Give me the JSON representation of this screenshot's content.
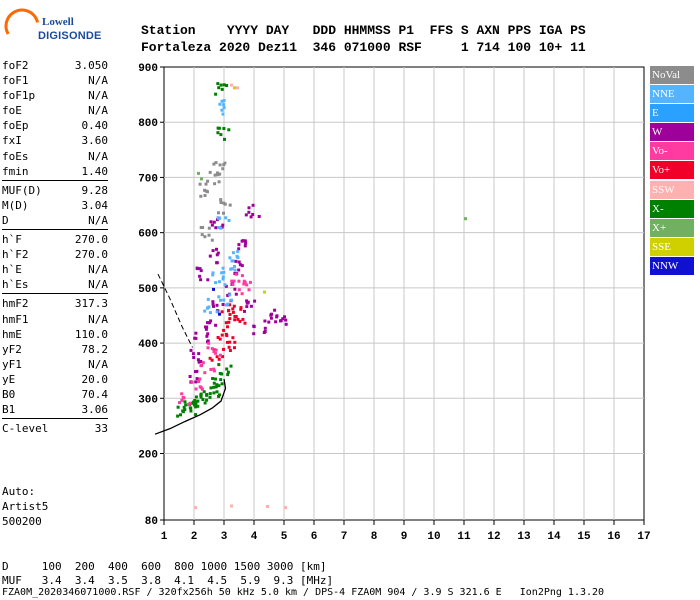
{
  "logo": {
    "line1": "Lowell",
    "line2": "DIGISONDE"
  },
  "header": {
    "labels": "Station    YYYY DAY   DDD HHMMSS P1  FFS S AXN PPS IGA PS",
    "values": "Fortaleza 2020 Dez11  346 071000 RSF     1 714 100 10+ 11"
  },
  "params": {
    "group1": [
      {
        "name": "foF2",
        "value": "3.050"
      },
      {
        "name": "foF1",
        "value": "N/A"
      },
      {
        "name": "foF1p",
        "value": "N/A"
      },
      {
        "name": "foE",
        "value": "N/A"
      },
      {
        "name": "foEp",
        "value": "0.40"
      },
      {
        "name": "fxI",
        "value": "3.60"
      },
      {
        "name": "foEs",
        "value": "N/A"
      },
      {
        "name": "fmin",
        "value": "1.40"
      }
    ],
    "group2": [
      {
        "name": "MUF(D)",
        "value": "9.28"
      },
      {
        "name": "M(D)",
        "value": "3.04"
      },
      {
        "name": "D",
        "value": "N/A"
      }
    ],
    "group3": [
      {
        "name": "h`F",
        "value": "270.0"
      },
      {
        "name": "h`F2",
        "value": "270.0"
      },
      {
        "name": "h`E",
        "value": "N/A"
      },
      {
        "name": "h`Es",
        "value": "N/A"
      }
    ],
    "group4": [
      {
        "name": "hmF2",
        "value": "317.3"
      },
      {
        "name": "hmF1",
        "value": "N/A"
      },
      {
        "name": "hmE",
        "value": "110.0"
      },
      {
        "name": "yF2",
        "value": "78.2"
      },
      {
        "name": "yF1",
        "value": "N/A"
      },
      {
        "name": "yE",
        "value": "20.0"
      },
      {
        "name": "B0",
        "value": "70.4"
      },
      {
        "name": "B1",
        "value": "3.06"
      }
    ],
    "group5": [
      {
        "name": "C-level",
        "value": "33"
      }
    ]
  },
  "auto": {
    "line1": "Auto:",
    "line2": "Artist5",
    "line3": "500200"
  },
  "legend": [
    {
      "label": "NoVal",
      "color": "#8c8c8c"
    },
    {
      "label": "NNE",
      "color": "#55b4ff"
    },
    {
      "label": "E",
      "color": "#2aa0ff"
    },
    {
      "label": "W",
      "color": "#a0009a"
    },
    {
      "label": "Vo-",
      "color": "#ff3aa0"
    },
    {
      "label": "Vo+",
      "color": "#f00028"
    },
    {
      "label": "SSW",
      "color": "#ffb0b0"
    },
    {
      "label": "X-",
      "color": "#008000"
    },
    {
      "label": "X+",
      "color": "#70b060"
    },
    {
      "label": "SSE",
      "color": "#d0d000"
    },
    {
      "label": "NNW",
      "color": "#1010d0"
    }
  ],
  "footer": {
    "dline": "D     100  200  400  600  800 1000 1500 3000 [km]",
    "mufline": "MUF   3.4  3.4  3.5  3.8  4.1  4.5  5.9  9.3 [MHz]",
    "fileline": "FZA0M_2020346071000.RSF / 320fx256h 50 kHz 5.0 km / DPS-4 FZA0M 904 / 3.9 S 321.6 E   Ion2Png 1.3.20"
  },
  "chart_data": {
    "type": "scatter",
    "title": "",
    "xlabel": "",
    "ylabel": "",
    "xlim": [
      1,
      17
    ],
    "ylim": [
      80,
      900
    ],
    "xticks": [
      "1",
      "2",
      "3",
      "4",
      "5",
      "6",
      "7",
      "8",
      "9",
      "10",
      "11",
      "12",
      "13",
      "14",
      "15",
      "16",
      "17"
    ],
    "yticks": [
      "80",
      "200",
      "300",
      "400",
      "500",
      "600",
      "700",
      "800",
      "900"
    ],
    "grid": true,
    "series": [
      {
        "name": "X-",
        "color": "#008000",
        "points": [
          [
            1.6,
            280
          ],
          [
            1.8,
            285
          ],
          [
            2.0,
            292
          ],
          [
            2.2,
            298
          ],
          [
            2.4,
            308
          ],
          [
            2.6,
            318
          ],
          [
            2.8,
            335
          ],
          [
            3.0,
            355
          ],
          [
            2.95,
            780
          ],
          [
            2.9,
            860
          ]
        ]
      },
      {
        "name": "W",
        "color": "#a0009a",
        "points": [
          [
            1.9,
            340
          ],
          [
            2.0,
            380
          ],
          [
            2.2,
            410
          ],
          [
            2.5,
            440
          ],
          [
            2.8,
            470
          ],
          [
            3.2,
            500
          ],
          [
            3.5,
            540
          ],
          [
            3.8,
            470
          ],
          [
            4.1,
            430
          ],
          [
            4.5,
            450
          ],
          [
            4.9,
            445
          ],
          [
            3.6,
            580
          ],
          [
            3.9,
            640
          ],
          [
            2.6,
            560
          ],
          [
            2.2,
            530
          ],
          [
            2.7,
            620
          ]
        ]
      },
      {
        "name": "Vo+",
        "color": "#f00028",
        "points": [
          [
            2.7,
            380
          ],
          [
            2.9,
            420
          ],
          [
            3.1,
            450
          ],
          [
            3.3,
            470
          ],
          [
            3.5,
            440
          ],
          [
            3.2,
            400
          ]
        ]
      },
      {
        "name": "Vo-",
        "color": "#ff3aa0",
        "points": [
          [
            1.7,
            300
          ],
          [
            2.0,
            330
          ],
          [
            2.4,
            360
          ],
          [
            2.6,
            390
          ],
          [
            3.4,
            520
          ],
          [
            3.6,
            500
          ]
        ]
      },
      {
        "name": "NNE",
        "color": "#55b4ff",
        "points": [
          [
            2.5,
            470
          ],
          [
            2.8,
            520
          ],
          [
            3.0,
            480
          ],
          [
            3.3,
            560
          ],
          [
            2.9,
            620
          ],
          [
            2.85,
            830
          ],
          [
            3.1,
            530
          ]
        ]
      },
      {
        "name": "NoVal",
        "color": "#8c8c8c",
        "points": [
          [
            2.3,
            680
          ],
          [
            2.6,
            700
          ],
          [
            2.8,
            720
          ],
          [
            3.0,
            650
          ],
          [
            2.4,
            600
          ]
        ]
      },
      {
        "name": "X+",
        "color": "#70b060",
        "points": [
          [
            11.0,
            628
          ],
          [
            2.2,
            700
          ],
          [
            2.1,
            710
          ]
        ]
      },
      {
        "name": "SSW",
        "color": "#ffb0b0",
        "points": [
          [
            3.2,
            870
          ],
          [
            3.4,
            865
          ],
          [
            2.0,
            105
          ],
          [
            3.2,
            108
          ],
          [
            4.4,
            107
          ],
          [
            5.0,
            105
          ]
        ]
      },
      {
        "name": "SSE",
        "color": "#d0d000",
        "points": [
          [
            4.3,
            495
          ],
          [
            3.3,
            865
          ]
        ]
      },
      {
        "name": "NNW",
        "color": "#1010d0",
        "points": [
          [
            2.6,
            500
          ],
          [
            2.8,
            455
          ]
        ]
      }
    ],
    "profile": [
      [
        0.7,
        235
      ],
      [
        1.2,
        245
      ],
      [
        1.7,
        258
      ],
      [
        2.2,
        270
      ],
      [
        2.6,
        282
      ],
      [
        2.9,
        295
      ],
      [
        3.05,
        318
      ],
      [
        3.0,
        335
      ]
    ],
    "dashed_line": [
      [
        0.8,
        525
      ],
      [
        1.2,
        480
      ],
      [
        1.6,
        430
      ],
      [
        1.95,
        392
      ]
    ]
  }
}
